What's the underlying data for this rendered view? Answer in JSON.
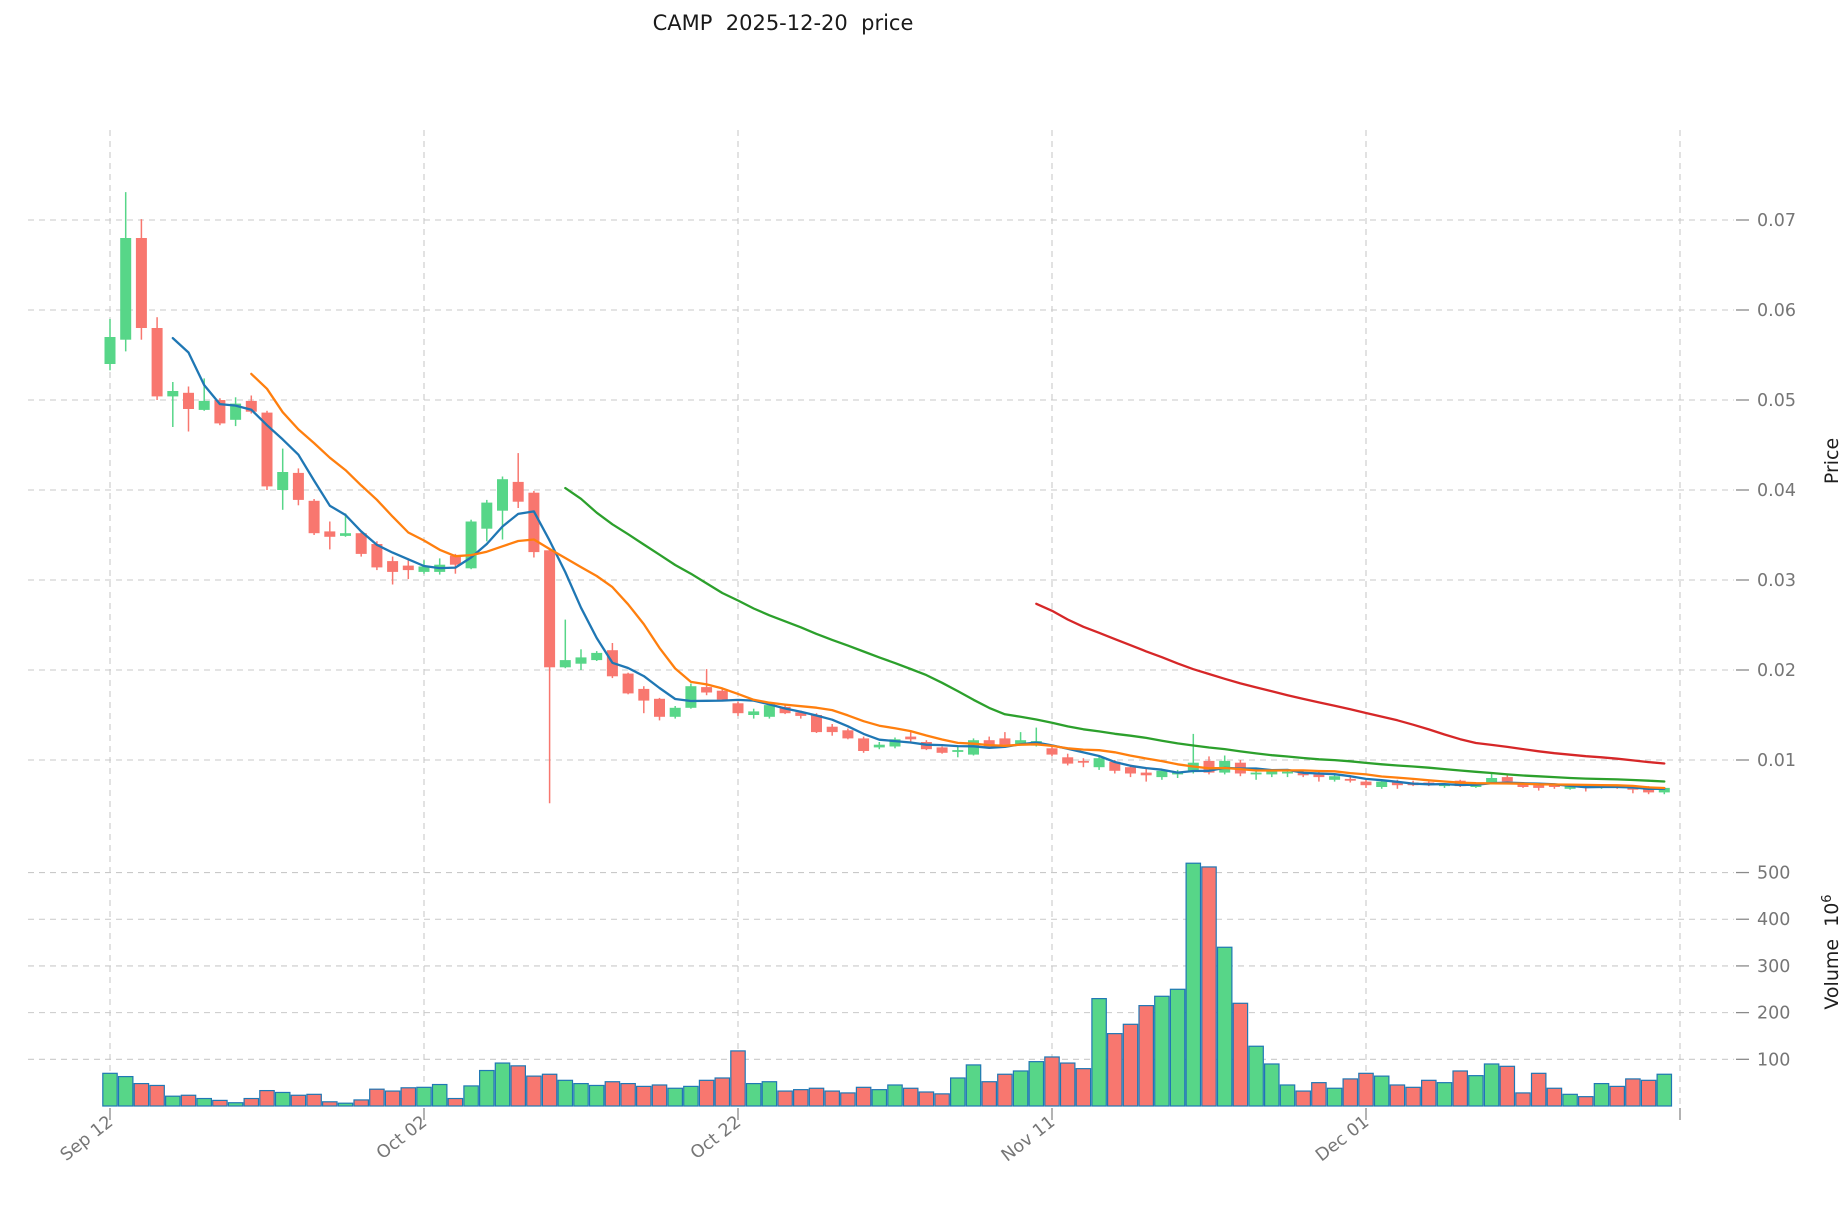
{
  "title": "CAMP  2025-12-20  price",
  "chart_data": {
    "type": "candlestick",
    "title": "CAMP  2025-12-20  price",
    "x_axis": {
      "tick_labels": [
        "Sep 12",
        "Oct 02",
        "Oct 22",
        "Nov 11",
        "Dec 01"
      ],
      "tick_day_indices": [
        0,
        20,
        40,
        60,
        80
      ],
      "extra_gridline_day_indices": [
        100
      ],
      "days_total": 100
    },
    "price_axis": {
      "label": "Price",
      "ticks": [
        0.07,
        0.06,
        0.05,
        0.04,
        0.03,
        0.02,
        0.01
      ],
      "ylim": [
        0.0064,
        0.08
      ],
      "grid": true
    },
    "volume_axis": {
      "label": "Volume",
      "unit": "10",
      "unit_exponent": "6",
      "ticks": [
        500,
        400,
        300,
        200,
        100
      ],
      "ylim": [
        0,
        660
      ],
      "grid": true
    },
    "moving_averages": {
      "windows": [
        5,
        10,
        30,
        60
      ],
      "colors": [
        "#1f77b4",
        "#ff7f0e",
        "#2ca02c",
        "#d62728"
      ]
    },
    "colors": {
      "up": "#57d688",
      "down": "#f8776f",
      "volume_edge": "#2077b4",
      "grid": "#c9c9c9",
      "tick_text": "#767676",
      "tick_mark": "#8a8a8a",
      "title_text": "#1a1a1a"
    },
    "candles_format": [
      "open",
      "high",
      "low",
      "close",
      "volume_millions"
    ],
    "candles": [
      [
        0.054,
        0.059,
        0.0533,
        0.057,
        70
      ],
      [
        0.0567,
        0.0731,
        0.0554,
        0.068,
        63
      ],
      [
        0.068,
        0.0701,
        0.0567,
        0.058,
        48
      ],
      [
        0.058,
        0.0592,
        0.05,
        0.0504,
        44
      ],
      [
        0.0504,
        0.052,
        0.047,
        0.051,
        21
      ],
      [
        0.0508,
        0.0515,
        0.0465,
        0.049,
        23
      ],
      [
        0.0489,
        0.0524,
        0.0488,
        0.0499,
        16
      ],
      [
        0.05,
        0.0502,
        0.0472,
        0.0474,
        12
      ],
      [
        0.0478,
        0.0503,
        0.0471,
        0.0496,
        7
      ],
      [
        0.0499,
        0.0505,
        0.0485,
        0.0487,
        16
      ],
      [
        0.0486,
        0.0488,
        0.04,
        0.0404,
        33
      ],
      [
        0.04,
        0.0446,
        0.0378,
        0.042,
        29
      ],
      [
        0.0419,
        0.0424,
        0.0383,
        0.0389,
        23
      ],
      [
        0.0388,
        0.039,
        0.035,
        0.0352,
        25
      ],
      [
        0.0354,
        0.0365,
        0.0334,
        0.0348,
        9
      ],
      [
        0.0349,
        0.0374,
        0.0348,
        0.0352,
        6
      ],
      [
        0.0352,
        0.0353,
        0.0326,
        0.0329,
        13
      ],
      [
        0.034,
        0.0343,
        0.0311,
        0.0314,
        36
      ],
      [
        0.0321,
        0.0326,
        0.0295,
        0.0309,
        32
      ],
      [
        0.0316,
        0.0324,
        0.0301,
        0.0311,
        39
      ],
      [
        0.0309,
        0.0322,
        0.0307,
        0.0315,
        40
      ],
      [
        0.0309,
        0.0324,
        0.0306,
        0.0317,
        46
      ],
      [
        0.0327,
        0.0329,
        0.0307,
        0.0317,
        16
      ],
      [
        0.0313,
        0.0367,
        0.0312,
        0.0365,
        43
      ],
      [
        0.0357,
        0.0389,
        0.0343,
        0.0386,
        76
      ],
      [
        0.0377,
        0.0415,
        0.0345,
        0.0412,
        92
      ],
      [
        0.0409,
        0.0441,
        0.038,
        0.0387,
        86
      ],
      [
        0.0397,
        0.0399,
        0.0325,
        0.0331,
        64
      ],
      [
        0.0333,
        0.0334,
        0.0052,
        0.0203,
        68
      ],
      [
        0.0203,
        0.0256,
        0.0202,
        0.0211,
        55
      ],
      [
        0.0207,
        0.0223,
        0.02,
        0.0214,
        48
      ],
      [
        0.0211,
        0.0221,
        0.021,
        0.0219,
        44
      ],
      [
        0.0222,
        0.023,
        0.0191,
        0.0193,
        52
      ],
      [
        0.0196,
        0.0197,
        0.0173,
        0.0174,
        48
      ],
      [
        0.0179,
        0.0182,
        0.0152,
        0.0166,
        42
      ],
      [
        0.0168,
        0.0169,
        0.0144,
        0.0148,
        45
      ],
      [
        0.0148,
        0.016,
        0.0146,
        0.0158,
        38
      ],
      [
        0.0158,
        0.0185,
        0.0157,
        0.0182,
        42
      ],
      [
        0.0181,
        0.0201,
        0.0172,
        0.0175,
        55
      ],
      [
        0.0177,
        0.0179,
        0.0165,
        0.0167,
        60
      ],
      [
        0.0163,
        0.0165,
        0.0149,
        0.0152,
        118
      ],
      [
        0.015,
        0.0157,
        0.0146,
        0.0154,
        48
      ],
      [
        0.0148,
        0.0163,
        0.0146,
        0.0161,
        52
      ],
      [
        0.0159,
        0.0162,
        0.0151,
        0.0152,
        32
      ],
      [
        0.0153,
        0.0155,
        0.0146,
        0.0149,
        35
      ],
      [
        0.015,
        0.0152,
        0.013,
        0.0131,
        38
      ],
      [
        0.0137,
        0.014,
        0.0127,
        0.0131,
        32
      ],
      [
        0.0133,
        0.0135,
        0.0123,
        0.0124,
        28
      ],
      [
        0.0124,
        0.0126,
        0.0108,
        0.011,
        40
      ],
      [
        0.0114,
        0.012,
        0.0112,
        0.0117,
        35
      ],
      [
        0.0115,
        0.0125,
        0.0113,
        0.0123,
        45
      ],
      [
        0.0126,
        0.0131,
        0.0119,
        0.0123,
        38
      ],
      [
        0.012,
        0.0122,
        0.0111,
        0.0112,
        30
      ],
      [
        0.0114,
        0.0115,
        0.0107,
        0.0108,
        26
      ],
      [
        0.0109,
        0.0115,
        0.0103,
        0.0111,
        60
      ],
      [
        0.0106,
        0.0124,
        0.0105,
        0.0122,
        88
      ],
      [
        0.0122,
        0.0126,
        0.0113,
        0.0115,
        52
      ],
      [
        0.0124,
        0.0131,
        0.0116,
        0.0117,
        68
      ],
      [
        0.0117,
        0.0131,
        0.0116,
        0.0122,
        75
      ],
      [
        0.0116,
        0.0136,
        0.0115,
        0.0121,
        95
      ],
      [
        0.0113,
        0.0115,
        0.0104,
        0.0106,
        105
      ],
      [
        0.0103,
        0.0107,
        0.0094,
        0.0096,
        92
      ],
      [
        0.0099,
        0.0102,
        0.0092,
        0.0097,
        80
      ],
      [
        0.0092,
        0.0104,
        0.0089,
        0.0102,
        230
      ],
      [
        0.0098,
        0.01,
        0.0085,
        0.0088,
        155
      ],
      [
        0.0092,
        0.0095,
        0.0081,
        0.0085,
        175
      ],
      [
        0.0086,
        0.0091,
        0.0076,
        0.0083,
        215
      ],
      [
        0.0081,
        0.009,
        0.0078,
        0.0088,
        235
      ],
      [
        0.0084,
        0.0089,
        0.008,
        0.0086,
        250
      ],
      [
        0.0087,
        0.0129,
        0.0085,
        0.0097,
        520
      ],
      [
        0.0099,
        0.0104,
        0.0084,
        0.0086,
        512
      ],
      [
        0.0086,
        0.0105,
        0.0084,
        0.0099,
        340
      ],
      [
        0.0097,
        0.01,
        0.0082,
        0.0085,
        220
      ],
      [
        0.0084,
        0.0089,
        0.0078,
        0.0086,
        128
      ],
      [
        0.0084,
        0.009,
        0.0081,
        0.0088,
        90
      ],
      [
        0.0085,
        0.009,
        0.0081,
        0.0087,
        45
      ],
      [
        0.0086,
        0.0088,
        0.0081,
        0.0083,
        32
      ],
      [
        0.0084,
        0.0087,
        0.0076,
        0.0081,
        50
      ],
      [
        0.0078,
        0.0085,
        0.0076,
        0.0082,
        38
      ],
      [
        0.0079,
        0.0081,
        0.0075,
        0.0077,
        58
      ],
      [
        0.0076,
        0.0078,
        0.0069,
        0.0072,
        70
      ],
      [
        0.007,
        0.0078,
        0.0068,
        0.0076,
        64
      ],
      [
        0.0076,
        0.0078,
        0.0068,
        0.0072,
        45
      ],
      [
        0.0075,
        0.0077,
        0.0071,
        0.0072,
        40
      ],
      [
        0.0075,
        0.0076,
        0.0071,
        0.0073,
        55
      ],
      [
        0.0071,
        0.0074,
        0.0069,
        0.0073,
        50
      ],
      [
        0.0077,
        0.0078,
        0.007,
        0.0071,
        75
      ],
      [
        0.007,
        0.0075,
        0.0069,
        0.0074,
        65
      ],
      [
        0.0075,
        0.0085,
        0.0074,
        0.008,
        90
      ],
      [
        0.0081,
        0.0083,
        0.0075,
        0.0076,
        85
      ],
      [
        0.0073,
        0.0075,
        0.0069,
        0.007,
        28
      ],
      [
        0.0072,
        0.0073,
        0.0066,
        0.0069,
        70
      ],
      [
        0.0072,
        0.0073,
        0.0068,
        0.007,
        38
      ],
      [
        0.0068,
        0.0072,
        0.0067,
        0.0071,
        25
      ],
      [
        0.0071,
        0.0072,
        0.0065,
        0.0069,
        20
      ],
      [
        0.0069,
        0.0072,
        0.0068,
        0.0071,
        48
      ],
      [
        0.0071,
        0.0072,
        0.0068,
        0.0069,
        42
      ],
      [
        0.007,
        0.0071,
        0.0063,
        0.0067,
        58
      ],
      [
        0.0069,
        0.0071,
        0.0062,
        0.0064,
        55
      ],
      [
        0.0064,
        0.007,
        0.0062,
        0.0069,
        68
      ]
    ]
  }
}
